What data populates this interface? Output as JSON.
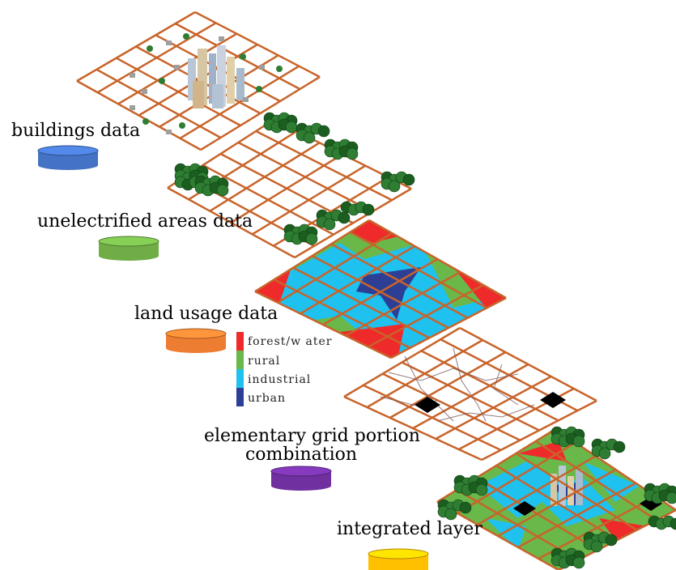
{
  "layers": {
    "buildings": "buildings data",
    "unelectrified": "unelectrified areas data",
    "land_usage": "land usage data",
    "elementary_line1": "elementary grid portion",
    "elementary_line2": "combination",
    "integrated": "integrated layer"
  },
  "legend": [
    {
      "label": "forest/w ater",
      "color": "#ee2a2a"
    },
    {
      "label": "rural",
      "color": "#6ab84a"
    },
    {
      "label": "industrial",
      "color": "#1fc1ef"
    },
    {
      "label": "urban",
      "color": "#2c3f95"
    }
  ],
  "colors": {
    "grid_line": "#c8642a",
    "buildings_db": "#4472c4",
    "unelectrified_db": "#70ad47",
    "land_usage_db": "#ed7d31",
    "elementary_db": "#7030a0",
    "integrated_db": "#ffc000"
  }
}
